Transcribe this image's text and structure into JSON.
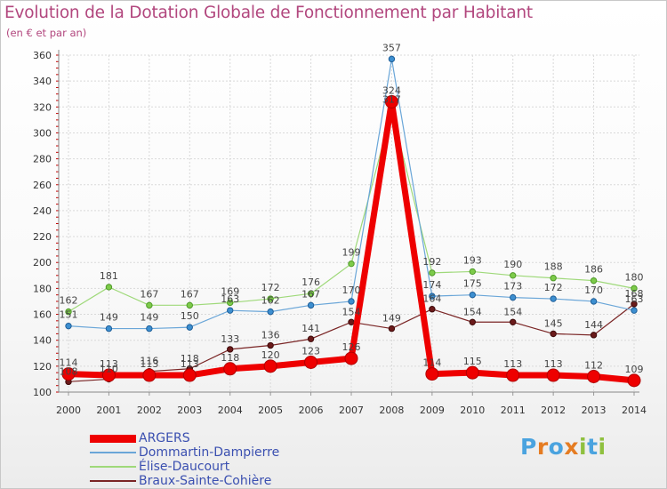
{
  "chart_data": {
    "type": "line",
    "title": "Evolution de la Dotation Globale de Fonctionnement par Habitant",
    "subtitle": "(en € et par an)",
    "xlabel": "",
    "ylabel": "",
    "ylim": [
      100,
      360
    ],
    "yticks": [
      100,
      120,
      140,
      160,
      180,
      200,
      220,
      240,
      260,
      280,
      300,
      320,
      340,
      360
    ],
    "categories": [
      "2000",
      "2001",
      "2002",
      "2003",
      "2004",
      "2005",
      "2006",
      "2007",
      "2008",
      "2009",
      "2010",
      "2011",
      "2012",
      "2013",
      "2014"
    ],
    "series": [
      {
        "name": "Braux-Sainte-Cohière",
        "color": "#6b1a1a",
        "values": [
          108,
          110,
          116,
          118,
          133,
          136,
          141,
          154,
          149,
          164,
          154,
          154,
          145,
          144,
          168
        ]
      },
      {
        "name": "Élise-Daucourt",
        "color": "#8fd16a",
        "values": [
          162,
          181,
          167,
          167,
          169,
          172,
          176,
          199,
          317,
          192,
          193,
          190,
          188,
          186,
          180
        ]
      },
      {
        "name": "Dommartin-Dampierre",
        "color": "#5b9bd5",
        "values": [
          151,
          149,
          149,
          150,
          163,
          162,
          167,
          170,
          357,
          174,
          175,
          173,
          172,
          170,
          163
        ]
      },
      {
        "name": "ARGERS",
        "color": "#ee0000",
        "values": [
          114,
          113,
          113,
          113,
          118,
          120,
          123,
          126,
          324,
          114,
          115,
          113,
          113,
          112,
          109
        ]
      }
    ],
    "value_labels": [
      {
        "series": "Braux-Sainte-Cohière",
        "labels": [
          "108",
          "110",
          "116",
          "118",
          "133",
          "136",
          "141",
          "154",
          "149",
          "164",
          "154",
          "154",
          "145",
          "144",
          "168"
        ]
      },
      {
        "series": "Élise-Daucourt",
        "labels": [
          "162",
          "181",
          "167",
          "167",
          "169",
          "172",
          "176",
          "199",
          "317",
          "192",
          "193",
          "190",
          "188",
          "186",
          "180"
        ]
      },
      {
        "series": "Dommartin-Dampierre",
        "labels": [
          "151",
          "149",
          "149",
          "150",
          "163",
          "162",
          "167",
          "170",
          "357",
          "174",
          "175",
          "173",
          "172",
          "170",
          "163"
        ]
      },
      {
        "series": "ARGERS",
        "labels": [
          "114",
          "113",
          "113",
          "113",
          "118",
          "120",
          "123",
          "126",
          "324",
          "114",
          "115",
          "113",
          "113",
          "112",
          "109"
        ]
      }
    ],
    "legend": [
      "ARGERS",
      "Dommartin-Dampierre",
      "Élise-Daucourt",
      "Braux-Sainte-Cohière"
    ]
  },
  "logo": {
    "text": "Proxiti",
    "colors": [
      "#4aa3df",
      "#e57c22",
      "#4aa3df",
      "#e57c22",
      "#8fc03f",
      "#4aa3df",
      "#8fc03f"
    ]
  }
}
